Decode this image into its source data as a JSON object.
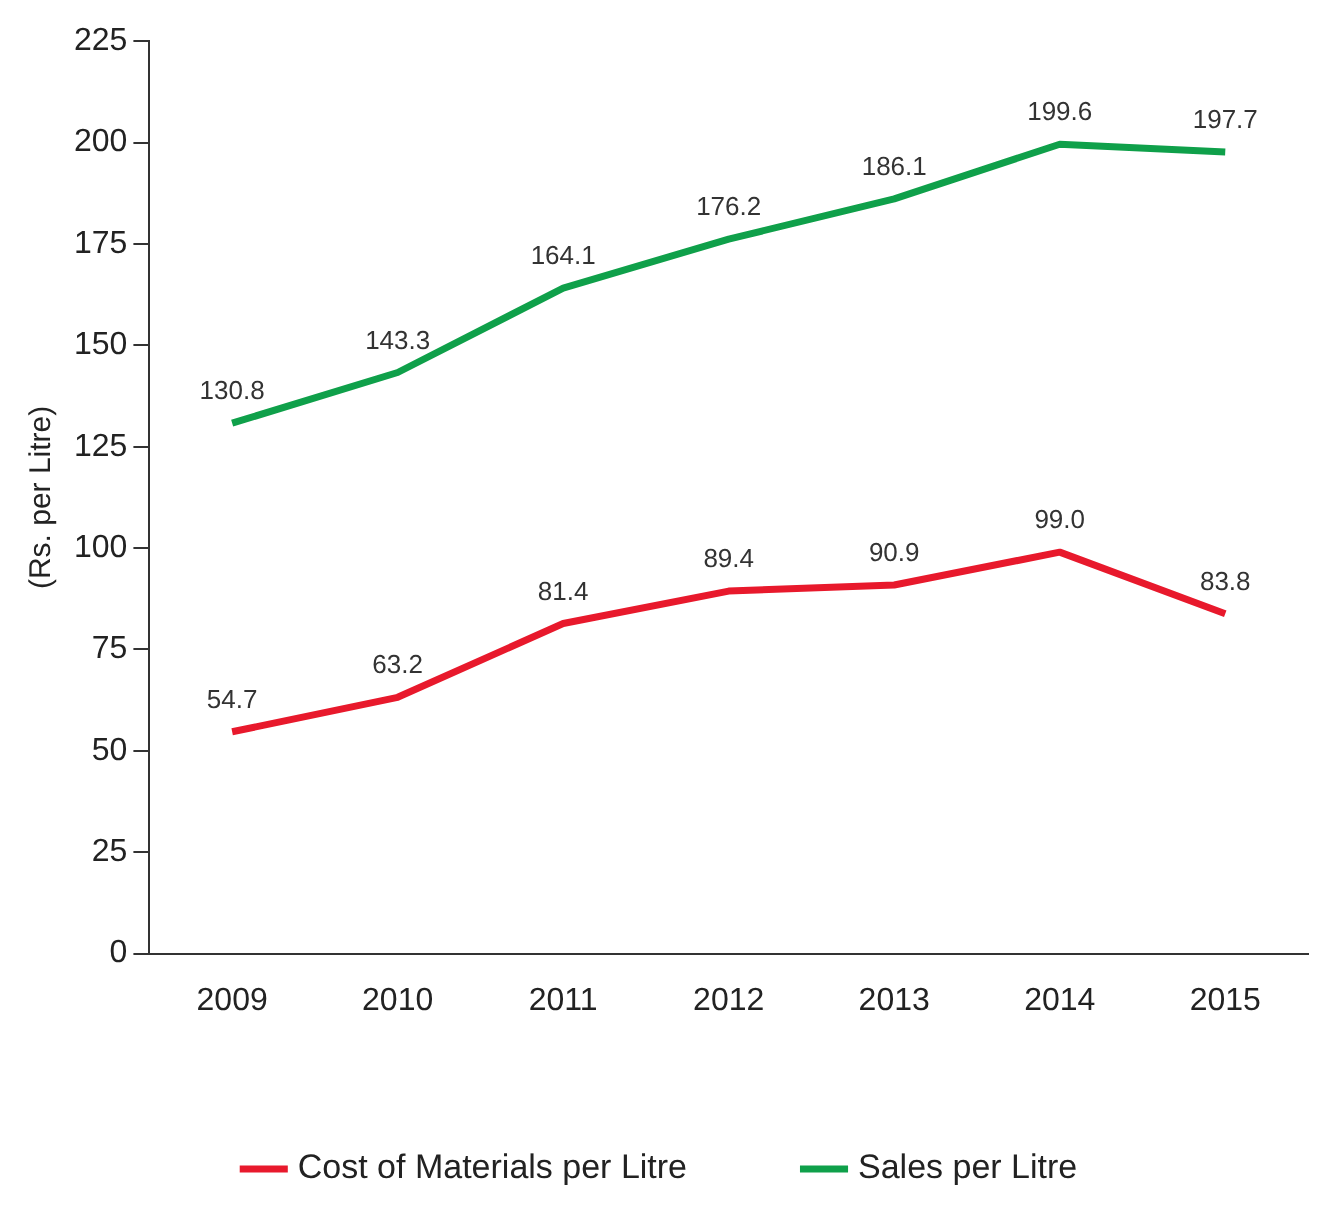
{
  "chart_data": {
    "type": "line",
    "ylabel": "(Rs. per Litre)",
    "categories": [
      "2009",
      "2010",
      "2011",
      "2012",
      "2013",
      "2014",
      "2015"
    ],
    "series": [
      {
        "name": "Cost of Materials per Litre",
        "color": "#e8192c",
        "values": [
          54.7,
          63.2,
          81.4,
          89.4,
          90.9,
          99.0,
          83.8
        ],
        "value_labels": [
          "54.7",
          "63.2",
          "81.4",
          "89.4",
          "90.9",
          "99.0",
          "83.8"
        ]
      },
      {
        "name": "Sales per Litre",
        "color": "#0fa04a",
        "values": [
          130.8,
          143.3,
          164.1,
          176.2,
          186.1,
          199.6,
          197.7
        ],
        "value_labels": [
          "130.8",
          "143.3",
          "164.1",
          "176.2",
          "186.1",
          "199.6",
          "197.7"
        ]
      }
    ],
    "ylim": [
      0,
      225
    ],
    "yticks": [
      0,
      25,
      50,
      75,
      100,
      125,
      150,
      175,
      200,
      225
    ],
    "grid": false,
    "legend": "bottom",
    "marker": "none",
    "line_style": "solid"
  }
}
